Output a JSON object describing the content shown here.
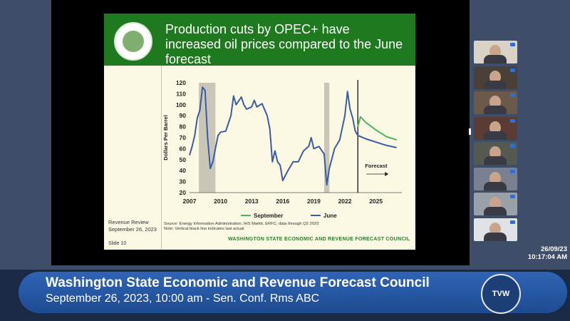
{
  "slide": {
    "title": "Production cuts by OPEC+ have increased oil prices compared to the June forecast",
    "review_line1": "Revenue Review",
    "review_line2": "September 26, 2023",
    "slide_number": "Slide 10",
    "source_line1": "Source: Energy Information Administration, IHS Markit, ERFC; data through Q2 2023",
    "source_line2": "Note: Vertical black line indicates last actual",
    "council": "WASHINGTON STATE ECONOMIC AND REVENUE FORECAST COUNCIL"
  },
  "chart_data": {
    "type": "line",
    "ylabel": "Dollars Per Barrel",
    "ylim": [
      20,
      120
    ],
    "yticks": [
      20,
      30,
      40,
      50,
      60,
      70,
      80,
      90,
      100,
      110,
      120
    ],
    "xlim": [
      2007,
      2027.5
    ],
    "xticks": [
      2007,
      2010,
      2013,
      2016,
      2019,
      2022,
      2025
    ],
    "annotation": "Forecast",
    "recessions": [
      [
        2007.9,
        2009.5
      ],
      [
        2020.0,
        2020.5
      ]
    ],
    "last_actual": 2023.25,
    "series": [
      {
        "name": "June",
        "color": "#3b5ba5",
        "x": [
          2007.0,
          2007.25,
          2007.5,
          2007.75,
          2008.0,
          2008.25,
          2008.5,
          2008.75,
          2009.0,
          2009.25,
          2009.5,
          2009.75,
          2010.0,
          2010.5,
          2011.0,
          2011.25,
          2011.5,
          2012.0,
          2012.25,
          2012.5,
          2013.0,
          2013.25,
          2013.5,
          2014.0,
          2014.5,
          2014.75,
          2015.0,
          2015.25,
          2015.5,
          2015.75,
          2016.0,
          2016.5,
          2017.0,
          2017.5,
          2018.0,
          2018.5,
          2018.75,
          2019.0,
          2019.5,
          2020.0,
          2020.25,
          2020.5,
          2021.0,
          2021.5,
          2022.0,
          2022.25,
          2022.5,
          2022.75,
          2023.0,
          2023.25,
          2024.0,
          2025.0,
          2026.0,
          2027.0
        ],
        "values": [
          54,
          62,
          72,
          88,
          95,
          116,
          113,
          70,
          42,
          48,
          60,
          72,
          75,
          76,
          90,
          108,
          100,
          107,
          100,
          96,
          98,
          104,
          98,
          101,
          90,
          78,
          48,
          58,
          48,
          45,
          31,
          40,
          48,
          48,
          58,
          62,
          70,
          60,
          62,
          55,
          27,
          42,
          60,
          68,
          90,
          112,
          96,
          88,
          76,
          72,
          69,
          66,
          63,
          61
        ]
      },
      {
        "name": "September",
        "color": "#49b958",
        "x": [
          2023.25,
          2023.5,
          2024.0,
          2025.0,
          2026.0,
          2027.0
        ],
        "values": [
          80,
          89,
          84,
          77,
          71,
          68
        ]
      }
    ]
  },
  "participants": [
    {
      "name": "participant-1",
      "bg": "#d8d2c7"
    },
    {
      "name": "participant-2",
      "bg": "#4a4038"
    },
    {
      "name": "participant-3",
      "bg": "#6b5a4a"
    },
    {
      "name": "participant-4",
      "bg": "#5a3c34"
    },
    {
      "name": "participant-5",
      "bg": "#545a50"
    },
    {
      "name": "participant-6",
      "bg": "#7a8090"
    },
    {
      "name": "participant-7",
      "bg": "#9aa0a8"
    },
    {
      "name": "participant-8",
      "bg": "#dfe3e8"
    }
  ],
  "clock": {
    "date": "26/09/23",
    "time": "10:17:04 AM"
  },
  "lower_third": {
    "title": "Washington State Economic and Revenue Forecast Council",
    "subtitle": "September 26, 2023, 10:00 am - Sen. Conf. Rms ABC",
    "logo_text": "TVW"
  }
}
